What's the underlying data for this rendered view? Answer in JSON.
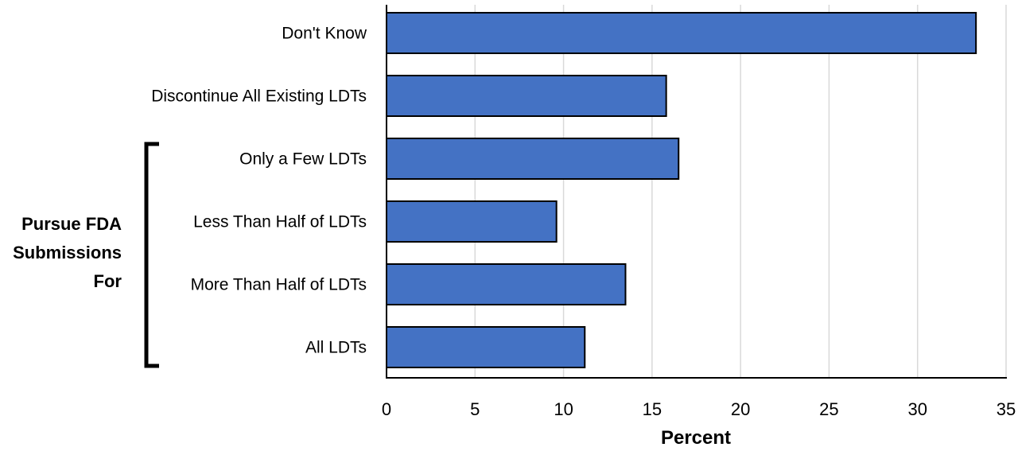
{
  "chart_data": {
    "type": "bar",
    "orientation": "horizontal",
    "categories": [
      "Don't Know",
      "Discontinue All Existing LDTs",
      "Only a Few LDTs",
      "Less Than Half of LDTs",
      "More Than Half of LDTs",
      "All LDTs"
    ],
    "values": [
      33.3,
      15.8,
      16.5,
      9.6,
      13.5,
      11.2
    ],
    "xlabel": "Percent",
    "xlim": [
      0,
      35
    ],
    "xticks": [
      "0",
      "5",
      "10",
      "15",
      "20",
      "25",
      "30",
      "35"
    ],
    "grid": true,
    "bar_color": "#4472c4",
    "group_bracket": {
      "label_lines": [
        "Pursue FDA",
        "Submissions",
        "For"
      ],
      "spans_categories": [
        "Only a Few LDTs",
        "All LDTs"
      ]
    }
  }
}
